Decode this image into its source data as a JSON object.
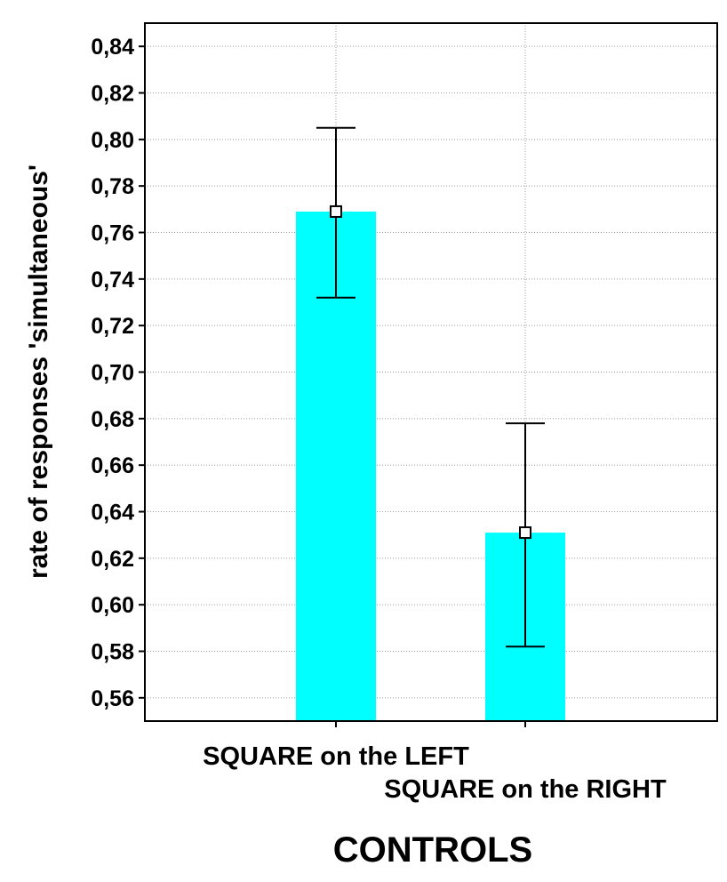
{
  "chart_data": {
    "type": "bar",
    "title": "",
    "xlabel": "CONTROLS",
    "ylabel": "rate of responses 'simultaneous'",
    "categories": [
      "SQUARE on the LEFT",
      "SQUARE on the RIGHT"
    ],
    "values": [
      0.769,
      0.631
    ],
    "error_bars": [
      {
        "lower": 0.732,
        "upper": 0.805
      },
      {
        "lower": 0.582,
        "upper": 0.678
      }
    ],
    "ylim": [
      0.55,
      0.85
    ],
    "yticks": [
      "0,56",
      "0,58",
      "0,60",
      "0,62",
      "0,64",
      "0,66",
      "0,68",
      "0,70",
      "0,72",
      "0,74",
      "0,76",
      "0,78",
      "0,80",
      "0,82",
      "0,84"
    ],
    "ytick_values": [
      0.56,
      0.58,
      0.6,
      0.62,
      0.64,
      0.66,
      0.68,
      0.7,
      0.72,
      0.74,
      0.76,
      0.78,
      0.8,
      0.82,
      0.84
    ],
    "grid": true,
    "bar_color": "#00ffff",
    "line_color": "#000000"
  }
}
